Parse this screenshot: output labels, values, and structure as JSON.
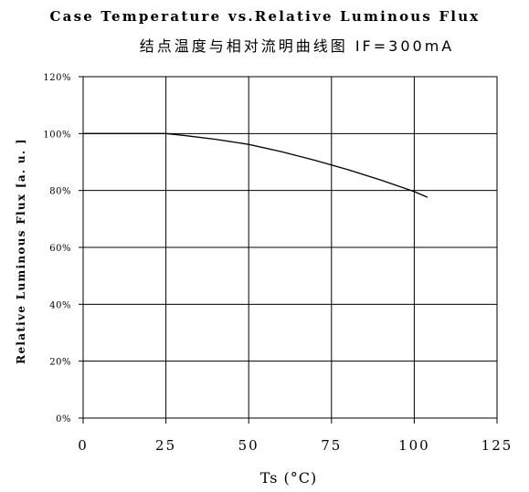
{
  "chart_data": {
    "type": "line",
    "title": "Case Temperature vs.Relative Luminous Flux",
    "subtitle": "结点温度与相对流明曲线图 IF=300mA",
    "xlabel": "Ts (°C)",
    "ylabel": "Relative Luminous Flux [a. u. ]",
    "xlim": [
      0,
      125
    ],
    "ylim": [
      0,
      120
    ],
    "x_ticks": [
      "0",
      "25",
      "50",
      "75",
      "100",
      "125"
    ],
    "y_ticks": [
      "0%",
      "20%",
      "40%",
      "60%",
      "80%",
      "100%",
      "120%"
    ],
    "grid": true,
    "series": [
      {
        "x": [
          0,
          10,
          20,
          25,
          30,
          40,
          50,
          60,
          70,
          80,
          90,
          100,
          104
        ],
        "y": [
          100,
          100,
          100,
          100,
          99.4,
          98,
          96.2,
          93.6,
          90.6,
          87.3,
          83.6,
          79.6,
          77.6
        ],
        "color": "#000000"
      }
    ]
  }
}
